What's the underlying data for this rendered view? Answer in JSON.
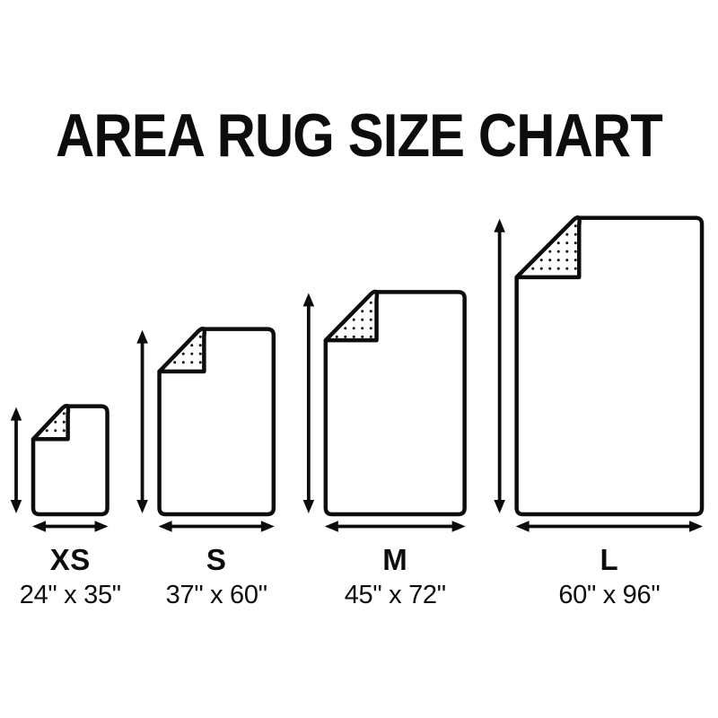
{
  "title": "AREA RUG SIZE CHART",
  "colors": {
    "ink": "#0d0d0d",
    "background": "#ffffff"
  },
  "rugs": [
    {
      "label": "XS",
      "dimensions": "24\" x 35\"",
      "width_in": 24,
      "height_in": 35
    },
    {
      "label": "S",
      "dimensions": "37\" x 60\"",
      "width_in": 37,
      "height_in": 60
    },
    {
      "label": "M",
      "dimensions": "45\" x 72\"",
      "width_in": 45,
      "height_in": 72
    },
    {
      "label": "L",
      "dimensions": "60\" x 96\"",
      "width_in": 60,
      "height_in": 96
    }
  ]
}
